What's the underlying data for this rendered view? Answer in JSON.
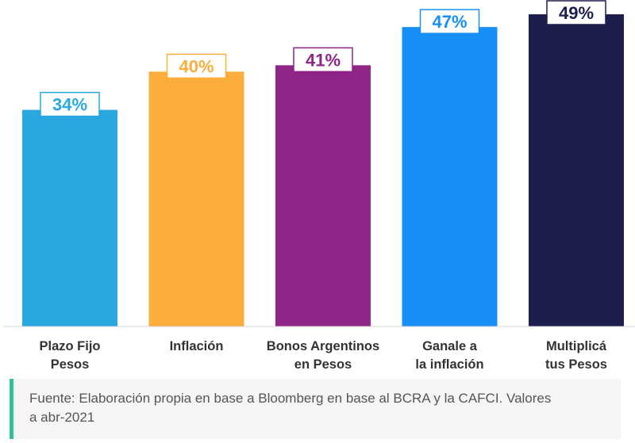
{
  "chart_data": {
    "type": "bar",
    "categories": [
      [
        "Plazo Fijo",
        "Pesos"
      ],
      [
        "Inflación"
      ],
      [
        "Bonos Argentinos",
        "en Pesos"
      ],
      [
        "Ganale a",
        "la inflación"
      ],
      [
        "Multiplicá",
        "tus Pesos"
      ]
    ],
    "values": [
      34,
      40,
      41,
      47,
      49
    ],
    "data_labels": [
      "34%",
      "40%",
      "41%",
      "47%",
      "49%"
    ],
    "colors": [
      "#29a8e0",
      "#fbae3c",
      "#8e2587",
      "#168ff7",
      "#1e1e4e"
    ],
    "title": "",
    "xlabel": "",
    "ylabel": "",
    "ylim": [
      0,
      50
    ],
    "grid": false,
    "legend": "none"
  },
  "footer": {
    "source_line1": "Fuente: Elaboración propia en base a Bloomberg en base al BCRA y la CAFCI. Valores",
    "source_line2": "a abr-2021",
    "accent_color": "#2ebf9b"
  }
}
